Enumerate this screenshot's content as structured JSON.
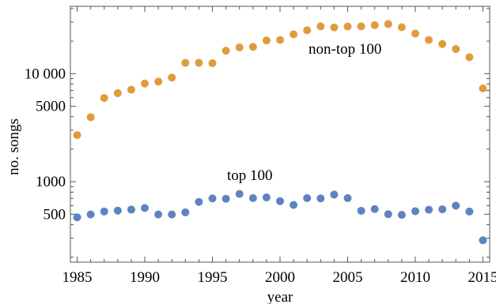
{
  "chart_data": {
    "type": "scatter",
    "title": "",
    "xlabel": "year",
    "ylabel": "no. songs",
    "xlim": [
      1984.5,
      2015.5
    ],
    "ylim": [
      180,
      42000
    ],
    "yscale": "log",
    "x_ticks": [
      "1985",
      "1990",
      "1995",
      "2000",
      "2005",
      "2010",
      "2015"
    ],
    "y_ticks": [
      "500",
      "1000",
      "5000",
      "10 000"
    ],
    "grid": false,
    "legend": "none",
    "annotations": [
      "non-top 100",
      "top 100"
    ],
    "x": [
      1985,
      1986,
      1987,
      1988,
      1989,
      1990,
      1991,
      1992,
      1993,
      1994,
      1995,
      1996,
      1997,
      1998,
      1999,
      2000,
      2001,
      2002,
      2003,
      2004,
      2005,
      2006,
      2007,
      2008,
      2009,
      2010,
      2011,
      2012,
      2013,
      2014,
      2015
    ],
    "series": [
      {
        "color": "#E09C3B",
        "values": [
          2700,
          3950,
          5950,
          6600,
          7100,
          8100,
          8450,
          9200,
          12600,
          12600,
          12500,
          16300,
          17500,
          17700,
          20300,
          20500,
          23100,
          25200,
          27400,
          26800,
          27300,
          27400,
          28100,
          28800,
          26900,
          23500,
          20500,
          18800,
          16900,
          14200,
          7300
        ]
      },
      {
        "color": "#5F83C0",
        "values": [
          468,
          497,
          530,
          540,
          552,
          570,
          497,
          497,
          520,
          650,
          700,
          695,
          770,
          705,
          715,
          660,
          610,
          705,
          700,
          760,
          705,
          538,
          558,
          500,
          493,
          533,
          550,
          555,
          600,
          530,
          287
        ]
      }
    ]
  }
}
